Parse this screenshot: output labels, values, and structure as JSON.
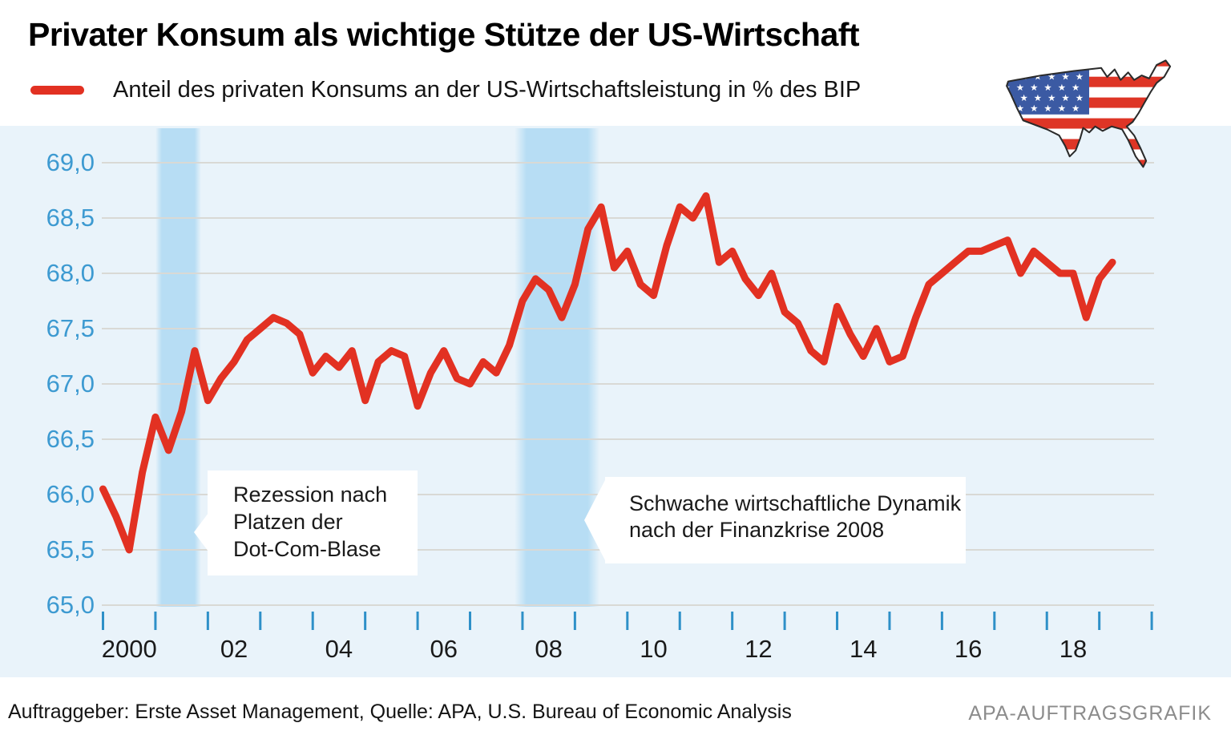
{
  "header": {
    "title": "Privater Konsum als wichtige Stütze der US-Wirtschaft"
  },
  "legend": {
    "label": "Anteil des privaten Konsums an der US-Wirtschaftsleistung in % des BIP"
  },
  "chart_data": {
    "type": "line",
    "title": "Privater Konsum als wichtige Stütze der US-Wirtschaft",
    "ylabel": "% des BIP",
    "ylim": [
      65.0,
      69.0
    ],
    "xlim": [
      2000,
      2020
    ],
    "grid": "horizontal",
    "legend_position": "top-left",
    "series": [
      {
        "name": "Anteil des privaten Konsums an der US-Wirtschaftsleistung in % des BIP",
        "x_start": 2000.0,
        "x_step_years": 0.25,
        "values": [
          66.05,
          65.8,
          65.5,
          66.2,
          66.7,
          66.4,
          66.75,
          67.3,
          66.85,
          67.05,
          67.2,
          67.4,
          67.5,
          67.6,
          67.55,
          67.45,
          67.1,
          67.25,
          67.15,
          67.3,
          66.85,
          67.2,
          67.3,
          67.25,
          66.8,
          67.1,
          67.3,
          67.05,
          67.0,
          67.2,
          67.1,
          67.35,
          67.75,
          67.95,
          67.85,
          67.6,
          67.9,
          68.4,
          68.6,
          68.05,
          68.2,
          67.9,
          67.8,
          68.25,
          68.6,
          68.5,
          68.7,
          68.1,
          68.2,
          67.95,
          67.8,
          68.0,
          67.65,
          67.55,
          67.3,
          67.2,
          67.7,
          67.45,
          67.25,
          67.5,
          67.2,
          67.25,
          67.6,
          67.9,
          68.0,
          68.1,
          68.2,
          68.2,
          68.25,
          68.3,
          68.0,
          68.2,
          68.1,
          68.0,
          68.0,
          67.6,
          67.95,
          68.1
        ]
      }
    ],
    "y_tick_labels": [
      "69,0",
      "68,5",
      "68,0",
      "67,5",
      "67,0",
      "66,5",
      "66,0",
      "65,5",
      "65,0"
    ],
    "y_tick_values": [
      69.0,
      68.5,
      68.0,
      67.5,
      67.0,
      66.5,
      66.0,
      65.5,
      65.0
    ],
    "x_tick_labels": [
      {
        "label": "2000",
        "center_year": 2000.5
      },
      {
        "label": "02",
        "center_year": 2002.5
      },
      {
        "label": "04",
        "center_year": 2004.5
      },
      {
        "label": "06",
        "center_year": 2006.5
      },
      {
        "label": "08",
        "center_year": 2008.5
      },
      {
        "label": "10",
        "center_year": 2010.5
      },
      {
        "label": "12",
        "center_year": 2012.5
      },
      {
        "label": "14",
        "center_year": 2014.5
      },
      {
        "label": "16",
        "center_year": 2016.5
      },
      {
        "label": "18",
        "center_year": 2018.5
      }
    ],
    "recession_bands": [
      {
        "name": "dotcom-recession",
        "start_year": 2001.0,
        "end_year": 2001.87
      },
      {
        "name": "financial-crisis-recession",
        "start_year": 2007.85,
        "end_year": 2009.47
      }
    ],
    "annotations": [
      {
        "lines": [
          "Rezession nach",
          "Platzen der",
          "Dot-Com-Blase"
        ]
      },
      {
        "lines": [
          "Schwache wirtschaftliche Dynamik",
          "nach der Finanzkrise 2008"
        ]
      }
    ]
  },
  "colors": {
    "line": "#e23122",
    "band": "#b7ddf4",
    "panel_bg": "#e9f3fa",
    "grid": "#d9d9d5",
    "tick": "#2e90c8",
    "y_label": "#3d9ad1",
    "flag_red": "#de3526",
    "flag_blue": "#3b5aa3"
  },
  "footer": {
    "left": "Auftraggeber: Erste Asset Management, Quelle: APA, U.S. Bureau of Economic Analysis",
    "right": "APA-AUFTRAGSGRAFIK"
  }
}
